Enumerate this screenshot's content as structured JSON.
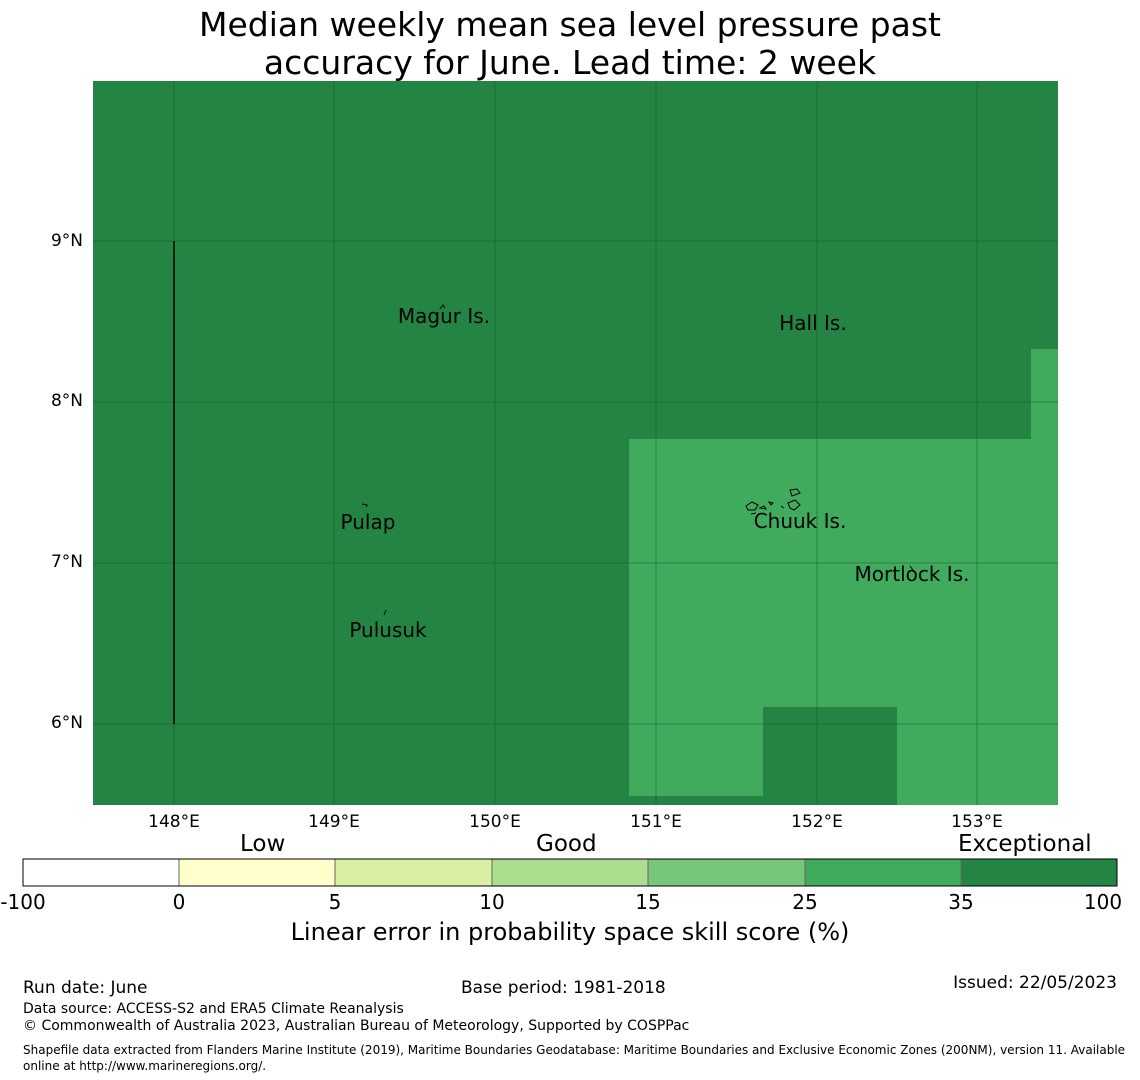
{
  "title_line1": "Median weekly mean sea level pressure past",
  "title_line2": "accuracy for June. Lead time: 2 week",
  "map": {
    "lon_range": [
      147.5,
      153.5
    ],
    "lat_range": [
      5.5,
      10.0
    ],
    "x_ticks": [
      "148°E",
      "149°E",
      "150°E",
      "151°E",
      "152°E",
      "153°E"
    ],
    "y_ticks": [
      "9°N",
      "8°N",
      "7°N",
      "6°N"
    ],
    "places": [
      {
        "name": "Magur Is.",
        "lon": 149.88,
        "lat": 8.52
      },
      {
        "name": "Hall Is.",
        "lon": 151.97,
        "lat": 8.48
      },
      {
        "name": "Pulap",
        "lon": 149.21,
        "lat": 7.22
      },
      {
        "name": "Chuuk Is.",
        "lon": 151.89,
        "lat": 7.23
      },
      {
        "name": "Mortlock Is.",
        "lon": 152.59,
        "lat": 6.9
      },
      {
        "name": "Pulusuk",
        "lon": 149.33,
        "lat": 6.56
      }
    ],
    "category_colors": {
      "exceptional": "#238443",
      "high": "#41ab5d"
    }
  },
  "colorbar": {
    "categories": [
      "Low",
      "Good",
      "Exceptional"
    ],
    "boundaries": [
      "-100",
      "0",
      "5",
      "10",
      "15",
      "25",
      "35",
      "100"
    ],
    "colors": [
      "#ffffff",
      "#ffffcc",
      "#d9f0a3",
      "#addd8e",
      "#78c679",
      "#41ab5d",
      "#238443"
    ],
    "label": "Linear error in probability space skill score (%)"
  },
  "footer": {
    "run_date": "Run date: June",
    "base_period": "Base period: 1981-2018",
    "issued": "Issued: 22/05/2023",
    "data_source": "Data source: ACCESS-S2 and ERA5 Climate Reanalysis",
    "copyright": "© Commonwealth of Australia 2023, Australian Bureau of Meteorology, Supported by COSPPac",
    "shapefile": "Shapefile data extracted from Flanders Marine Institute (2019), Maritime Boundaries Geodatabase: Maritime Boundaries and Exclusive Economic Zones (200NM), version 11. Available online at http://www.marineregions.org/."
  }
}
